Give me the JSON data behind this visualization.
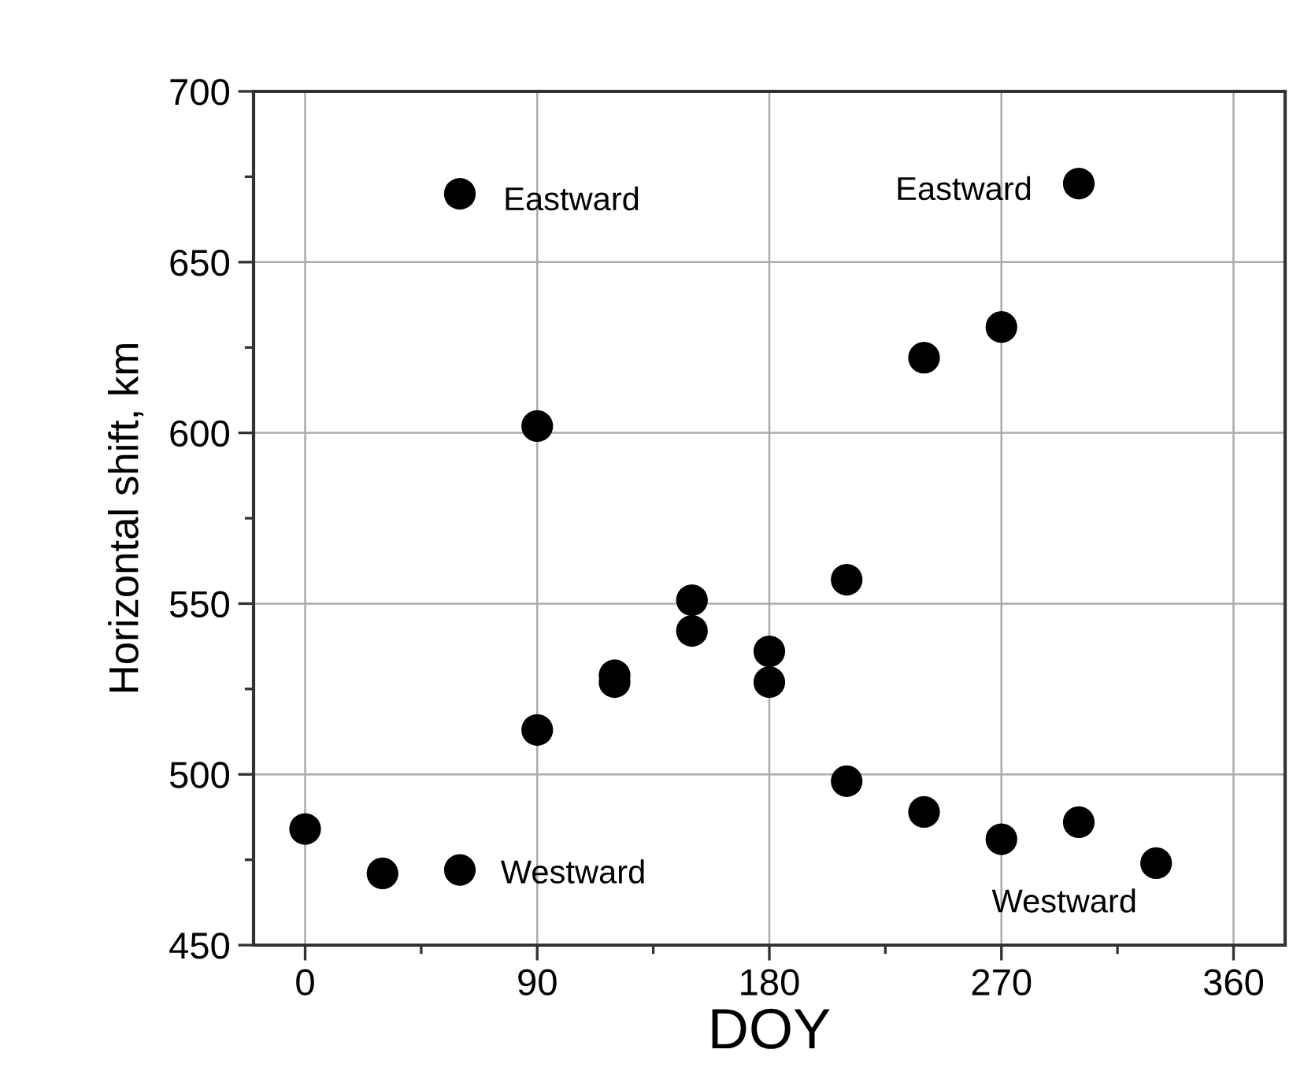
{
  "chart_data": {
    "type": "scatter",
    "xlabel": "DOY",
    "ylabel": "Horizontal shift, km",
    "x": [
      0,
      30,
      60,
      60,
      90,
      90,
      120,
      120,
      150,
      150,
      180,
      180,
      210,
      210,
      240,
      240,
      270,
      270,
      300,
      300,
      330
    ],
    "series": [
      {
        "color": "#000000",
        "values": [
          484,
          471,
          472,
          670,
          602,
          513,
          529,
          527,
          551,
          542,
          536,
          527,
          557,
          498,
          622,
          489,
          631,
          481,
          673,
          486,
          474
        ]
      }
    ],
    "marker": "circle",
    "grid": true,
    "xlim": [
      -20,
      380
    ],
    "ylim": [
      450,
      700
    ],
    "xticks": [
      0,
      {
        "value": 45,
        "label": null
      },
      90,
      {
        "value": 135,
        "label": null
      },
      180,
      {
        "value": 225,
        "label": null
      },
      270,
      {
        "value": 315,
        "label": null
      },
      360
    ],
    "yticks": [
      450,
      {
        "value": 475,
        "label": null
      },
      500,
      {
        "value": 525,
        "label": null
      },
      550,
      {
        "value": 575,
        "label": null
      },
      600,
      {
        "value": 625,
        "label": null
      },
      650,
      {
        "value": 675,
        "label": null
      },
      700
    ],
    "annotations": [
      {
        "text": "Eastward",
        "x": 60,
        "y": 670
      },
      {
        "text": "Eastward",
        "x": 300,
        "y": 673
      },
      {
        "text": "Westward",
        "x": 60,
        "y": 472
      },
      {
        "text": "Westward",
        "x": 270,
        "y": 481
      }
    ]
  }
}
